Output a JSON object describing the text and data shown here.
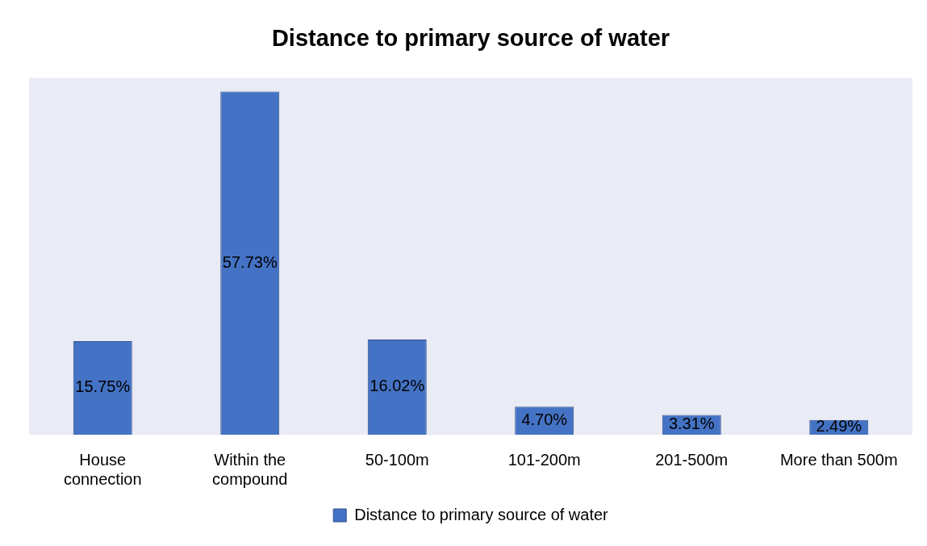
{
  "chart_data": {
    "type": "bar",
    "title": "Distance to primary source of water",
    "categories": [
      "House connection",
      "Within the compound",
      "50-100m",
      "101-200m",
      "201-500m",
      "More than 500m"
    ],
    "series": [
      {
        "name": "Distance to primary source of water",
        "color": "#4472c4",
        "values": [
          15.75,
          57.73,
          16.02,
          4.7,
          3.31,
          2.49
        ],
        "value_labels": [
          "15.75%",
          "57.73%",
          "16.02%",
          "4.70%",
          "3.31%",
          "2.49%"
        ]
      }
    ],
    "legend": "bottom",
    "grid": false
  }
}
